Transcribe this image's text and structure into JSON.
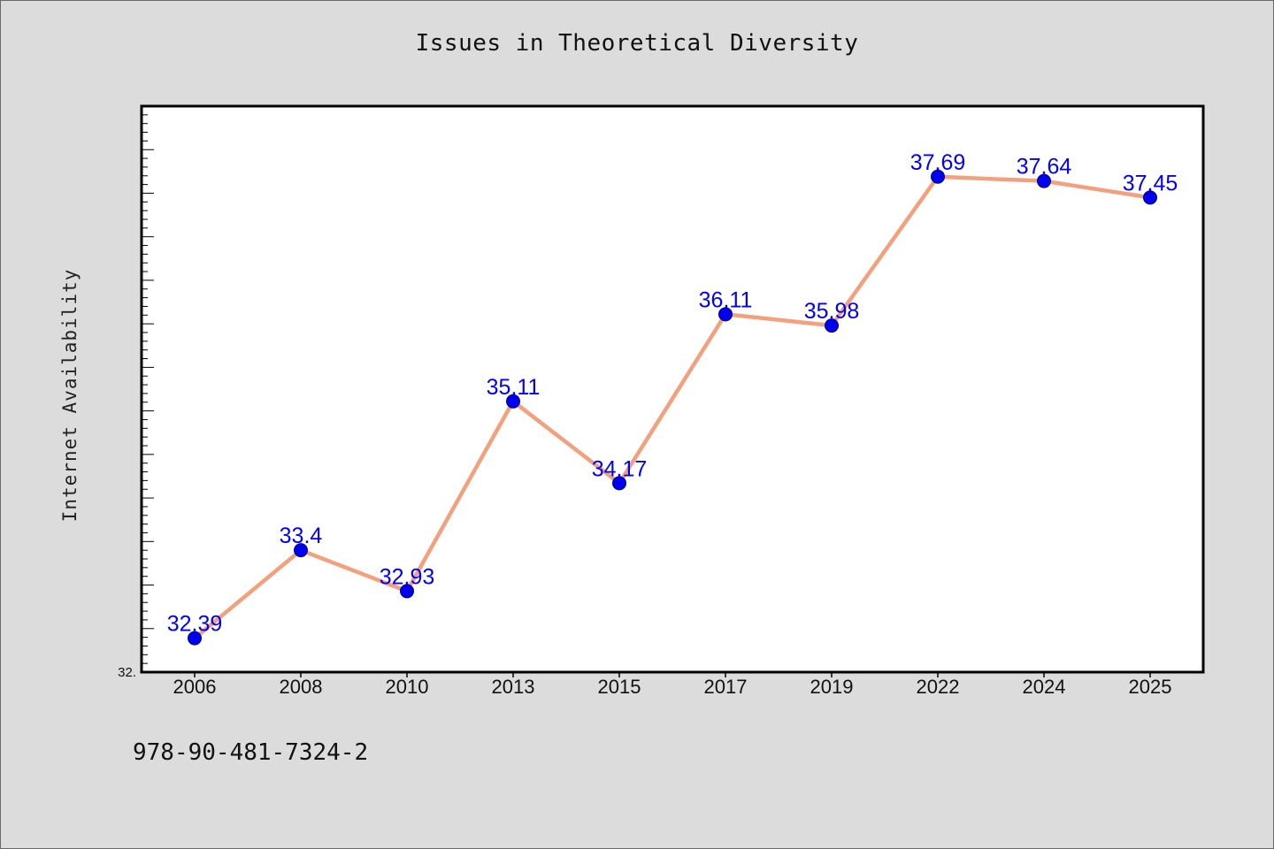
{
  "chart_data": {
    "type": "line",
    "title": "Issues in Theoretical Diversity",
    "xlabel": "",
    "ylabel": "Internet Availability",
    "categories": [
      "2006",
      "2008",
      "2010",
      "2013",
      "2015",
      "2017",
      "2019",
      "2022",
      "2024",
      "2025"
    ],
    "series": [
      {
        "values": [
          32.39,
          33.4,
          32.93,
          35.11,
          34.17,
          36.11,
          35.98,
          37.69,
          37.64,
          37.45
        ],
        "labels": [
          "32.39",
          "33.4",
          "32.93",
          "35.11",
          "34.17",
          "36.11",
          "35.98",
          "37.69",
          "37.64",
          "37.45"
        ]
      }
    ],
    "ylim": [
      32.0,
      38.5
    ],
    "y_tick_labels": [
      "32."
    ],
    "grid": false,
    "colors": {
      "line": "#f4a07c",
      "marker": "#0000ee",
      "marker_edge": "#00008b",
      "data_label": "#0000ff"
    }
  },
  "footer": {
    "isbn": "978-90-481-7324-2"
  }
}
